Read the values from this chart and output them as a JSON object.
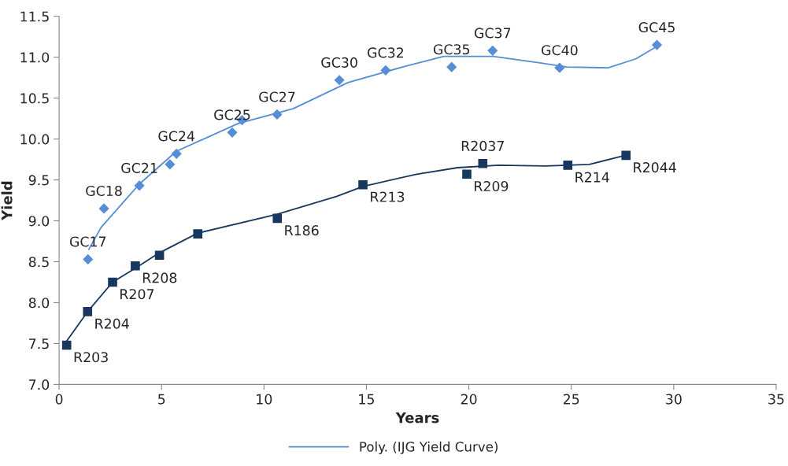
{
  "chart_data": {
    "type": "scatter",
    "xlabel": "Years",
    "ylabel": "Yield",
    "xlim": [
      0,
      35
    ],
    "xticks": [
      0,
      5,
      10,
      15,
      20,
      25,
      30,
      35
    ],
    "ylim": [
      7,
      11.5
    ],
    "yticks": [
      {
        "value": 7,
        "label": "7.0"
      },
      7.5,
      {
        "value": 8,
        "label": "8.0"
      },
      8.5,
      {
        "value": 9,
        "label": "9.0"
      },
      9.5,
      {
        "value": 10,
        "label": "10.0"
      },
      10.5,
      {
        "value": 11,
        "label": "11.0"
      },
      11.5
    ],
    "grid": false,
    "legend": "bottom",
    "series": [
      {
        "marker": "diamond",
        "color": "#558ed5",
        "x": [
          1.41,
          2.19,
          3.92,
          5.41,
          5.73,
          8.45,
          8.93,
          10.64,
          13.68,
          15.94,
          19.16,
          21.16,
          24.43,
          29.18
        ],
        "values": [
          8.53,
          9.15,
          9.43,
          9.69,
          9.82,
          10.08,
          10.23,
          10.3,
          10.72,
          10.84,
          10.88,
          11.08,
          10.87,
          11.15
        ]
      },
      {
        "marker": "square",
        "color": "#17375e",
        "x": [
          0.37,
          1.39,
          2.61,
          3.72,
          4.9,
          6.77,
          10.65,
          14.83,
          19.9,
          20.68,
          24.83,
          27.67
        ],
        "values": [
          7.48,
          7.89,
          8.25,
          8.45,
          8.58,
          8.84,
          9.03,
          9.44,
          9.57,
          9.7,
          9.68,
          9.8
        ]
      },
      {
        "type": "line",
        "name": "Poly. (IJG Yield Curve)",
        "color": "#558ed5",
        "x": [
          1.45,
          2.05,
          3.92,
          5.72,
          8.74,
          11.42,
          14.1,
          16.76,
          18.77,
          21.18,
          23.47,
          24.79,
          26.8,
          28.15,
          29.09
        ],
        "values": [
          8.65,
          8.92,
          9.45,
          9.85,
          10.19,
          10.37,
          10.69,
          10.88,
          11.01,
          11.01,
          10.93,
          10.88,
          10.87,
          10.98,
          11.12
        ]
      },
      {
        "type": "line",
        "color": "#17375e",
        "x": [
          0.37,
          1.39,
          2.61,
          3.72,
          4.9,
          6.77,
          10.65,
          13.56,
          14.83,
          17.45,
          19.45,
          21.46,
          23.73,
          25.88,
          27.48
        ],
        "values": [
          7.53,
          7.89,
          8.25,
          8.42,
          8.61,
          8.85,
          9.08,
          9.3,
          9.42,
          9.57,
          9.65,
          9.68,
          9.67,
          9.69,
          9.79
        ]
      }
    ],
    "annotations": [
      {
        "text": "GC17",
        "x": 1.41,
        "y": 8.53
      },
      {
        "text": "GC18",
        "x": 2.19,
        "y": 9.15
      },
      {
        "text": "GC21",
        "x": 3.92,
        "y": 9.43
      },
      {
        "text": "GC24",
        "x": 5.73,
        "y": 9.82
      },
      {
        "text": "GC25",
        "x": 8.45,
        "y": 10.08
      },
      {
        "text": "GC27",
        "x": 10.64,
        "y": 10.3
      },
      {
        "text": "GC30",
        "x": 13.68,
        "y": 10.72
      },
      {
        "text": "GC32",
        "x": 15.94,
        "y": 10.84
      },
      {
        "text": "GC35",
        "x": 19.16,
        "y": 10.88
      },
      {
        "text": "GC37",
        "x": 21.16,
        "y": 11.08
      },
      {
        "text": "GC40",
        "x": 24.43,
        "y": 10.87
      },
      {
        "text": "GC45",
        "x": 29.18,
        "y": 11.15
      },
      {
        "text": "R203",
        "x": 0.37,
        "y": 7.48
      },
      {
        "text": "R204",
        "x": 1.39,
        "y": 7.89
      },
      {
        "text": "R207",
        "x": 2.61,
        "y": 8.25
      },
      {
        "text": "R208",
        "x": 3.72,
        "y": 8.45
      },
      {
        "text": "R186",
        "x": 10.65,
        "y": 9.03
      },
      {
        "text": "R213",
        "x": 14.83,
        "y": 9.44
      },
      {
        "text": "R209",
        "x": 19.9,
        "y": 9.57
      },
      {
        "text": "R2037",
        "x": 20.68,
        "y": 9.7
      },
      {
        "text": "R214",
        "x": 24.83,
        "y": 9.68
      },
      {
        "text": "R2044",
        "x": 27.67,
        "y": 9.8
      }
    ]
  }
}
